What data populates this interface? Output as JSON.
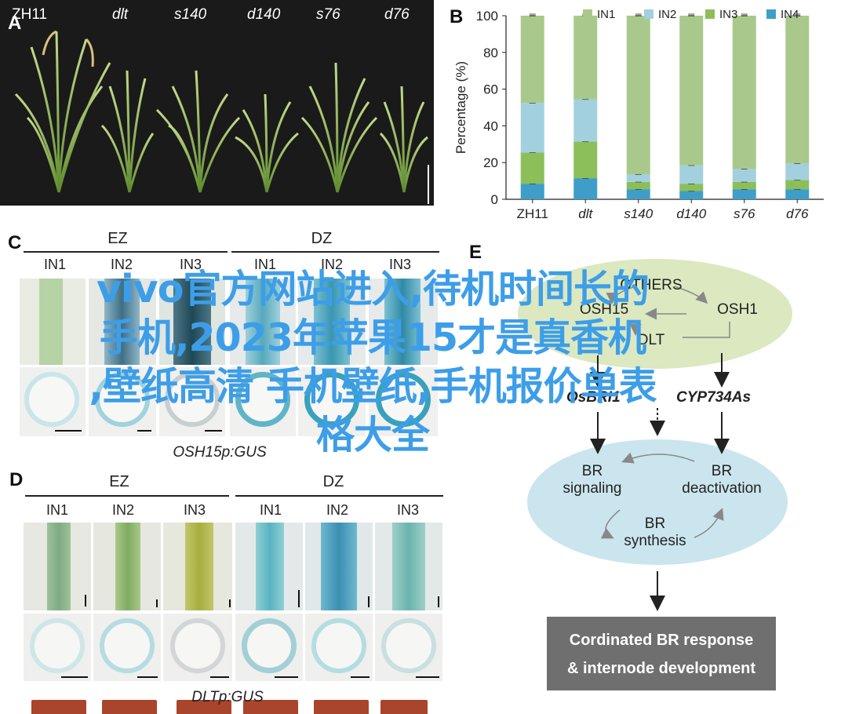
{
  "panels": {
    "a": {
      "letter": "A",
      "labels": [
        "ZH11",
        "dlt",
        "s140",
        "d140",
        "s76",
        "d76"
      ]
    },
    "b": {
      "letter": "B"
    },
    "c": {
      "letter": "C",
      "group1": "EZ",
      "group2": "DZ",
      "cols": [
        "IN1",
        "IN2",
        "IN3",
        "IN1",
        "IN2",
        "IN3"
      ],
      "caption": "OSH15p:GUS"
    },
    "d": {
      "letter": "D",
      "group1": "EZ",
      "group2": "DZ",
      "cols": [
        "IN1",
        "IN2",
        "IN3",
        "IN1",
        "IN2",
        "IN3"
      ],
      "caption": "DLTp:GUS"
    },
    "e": {
      "letter": "E",
      "others": "OTHERS",
      "osh15": "OSH15",
      "osh1": "OSH1",
      "dlt": "DLT",
      "osbri1": "OsBRI1",
      "cyp": "CYP734As",
      "br_signaling_1": "BR",
      "br_signaling_2": "signaling",
      "br_deact_1": "BR",
      "br_deact_2": "deactivation",
      "br_synth_1": "BR",
      "br_synth_2": "synthesis",
      "result_1": "Cordinated BR response",
      "result_2": "& internode development"
    }
  },
  "chart_data": {
    "type": "bar",
    "stacked": true,
    "categories": [
      "ZH11",
      "dlt",
      "s140",
      "d140",
      "s76",
      "d76"
    ],
    "series": [
      {
        "name": "IN1",
        "color": "#a9c98c",
        "values": [
          47.5,
          45.5,
          86.5,
          81.5,
          83.5,
          80.5
        ]
      },
      {
        "name": "IN2",
        "color": "#a3d0df",
        "values": [
          27,
          23,
          4,
          10,
          7,
          9
        ]
      },
      {
        "name": "IN3",
        "color": "#8cbf5a",
        "values": [
          17,
          20,
          4,
          4,
          4,
          5
        ]
      },
      {
        "name": "IN4",
        "color": "#3f9ec8",
        "values": [
          8.5,
          11.5,
          5.5,
          4.5,
          5.5,
          5.5
        ]
      }
    ],
    "ylabel": "Percentage (%)",
    "ylim": [
      0,
      100
    ],
    "yticks": [
      "0",
      "20",
      "40",
      "60",
      "80",
      "100"
    ],
    "legend": "top",
    "grid": false
  },
  "watermark": {
    "line1": "vivo官方网站进入,待机时间长的",
    "line2": "手机,2023年苹果15才是真香机",
    "line3": ",壁纸高清 手机壁纸,手机报价单表",
    "line4": "格大全"
  },
  "colors": {
    "ez_cross_ring": "#bfe1e7",
    "dz_cross_ring": "#5fb5c8",
    "ellipse_green": "#dbe8c0",
    "ellipse_blue": "#cbe5ee"
  }
}
